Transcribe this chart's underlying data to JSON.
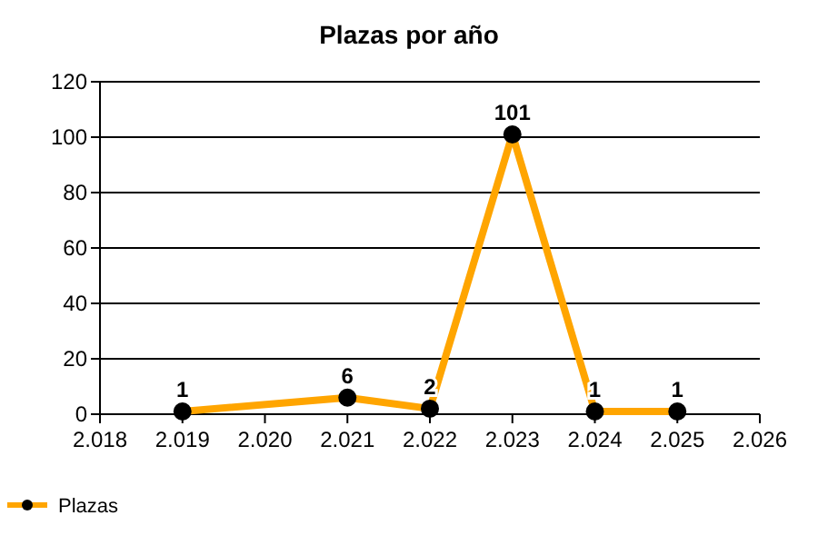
{
  "chart_data": {
    "type": "line",
    "title": "Plazas por año",
    "x": [
      2019,
      2021,
      2022,
      2023,
      2024,
      2025
    ],
    "series": [
      {
        "name": "Plazas",
        "color": "#ffa500",
        "values": [
          1,
          6,
          2,
          101,
          1,
          1
        ]
      }
    ],
    "xlim": [
      2018,
      2026
    ],
    "xticks": [
      {
        "value": 2018,
        "label": "2.018"
      },
      {
        "value": 2019,
        "label": "2.019"
      },
      {
        "value": 2020,
        "label": "2.020"
      },
      {
        "value": 2021,
        "label": "2.021"
      },
      {
        "value": 2022,
        "label": "2.022"
      },
      {
        "value": 2023,
        "label": "2.023"
      },
      {
        "value": 2024,
        "label": "2.024"
      },
      {
        "value": 2025,
        "label": "2.025"
      },
      {
        "value": 2026,
        "label": "2.026"
      }
    ],
    "ylim": [
      0,
      120
    ],
    "yticks": [
      0,
      20,
      40,
      60,
      80,
      100,
      120
    ],
    "grid": "y",
    "legend": "bottom left",
    "marker": "circle",
    "line_style": "solid",
    "data_labels": true
  }
}
